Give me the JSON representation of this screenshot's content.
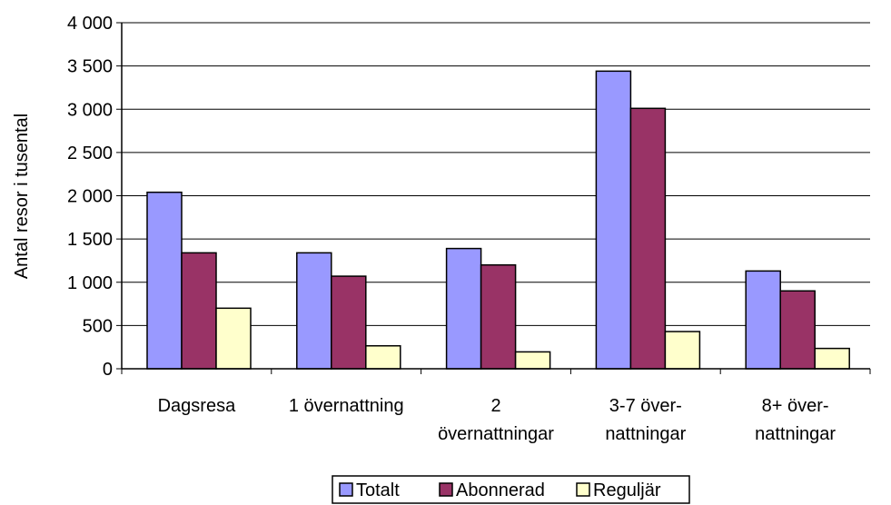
{
  "chart_data": {
    "type": "bar",
    "title": "",
    "xlabel": "",
    "ylabel": "Antal resor i tusental",
    "ylim": [
      0,
      4000
    ],
    "yticks": [
      {
        "value": 0,
        "label": "0"
      },
      {
        "value": 500,
        "label": "500"
      },
      {
        "value": 1000,
        "label": "1 000"
      },
      {
        "value": 1500,
        "label": "1 500"
      },
      {
        "value": 2000,
        "label": "2 000"
      },
      {
        "value": 2500,
        "label": "2 500"
      },
      {
        "value": 3000,
        "label": "3 000"
      },
      {
        "value": 3500,
        "label": "3 500"
      },
      {
        "value": 4000,
        "label": "4 000"
      }
    ],
    "categories": [
      [
        "Dagsresa"
      ],
      [
        "1 övernattning"
      ],
      [
        "2",
        "övernattningar"
      ],
      [
        "3-7 över-",
        "nattningar"
      ],
      [
        "8+ över-",
        "nattningar"
      ]
    ],
    "series": [
      {
        "name": "Totalt",
        "color": "#9999ff",
        "values": [
          2040,
          1340,
          1390,
          3440,
          1130
        ]
      },
      {
        "name": "Abonnerad",
        "color": "#993366",
        "values": [
          1340,
          1070,
          1200,
          3010,
          900
        ]
      },
      {
        "name": "Reguljär",
        "color": "#ffffcc",
        "values": [
          700,
          265,
          195,
          430,
          235
        ]
      }
    ],
    "grid": true,
    "legend": "bottom"
  }
}
